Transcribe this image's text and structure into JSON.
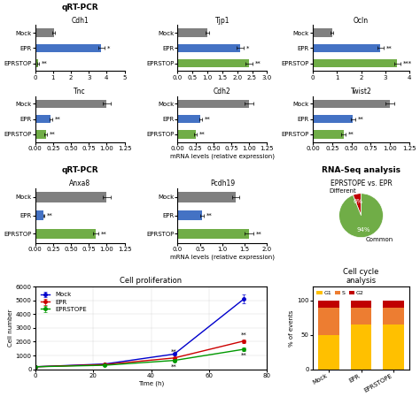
{
  "chart_data": [
    {
      "type": "bar",
      "orientation": "horizontal",
      "title": "qRT-PCR",
      "subtitle": "Cdh1",
      "categories": [
        "Mock",
        "EPR",
        "EPRSTOP"
      ],
      "values": [
        1.05,
        3.7,
        0.15
      ],
      "errors": [
        0.08,
        0.18,
        0.05
      ],
      "colors": [
        "#808080",
        "#4472c4",
        "#70ad47"
      ],
      "xlim": [
        0,
        5
      ],
      "xticks": [
        0,
        1,
        2,
        3,
        4,
        5
      ],
      "annotations": [
        null,
        "*",
        "**"
      ]
    },
    {
      "type": "bar",
      "orientation": "horizontal",
      "subtitle": "Tjp1",
      "categories": [
        "Mock",
        "EPR",
        "EPRSTOP"
      ],
      "values": [
        1.0,
        2.1,
        2.4
      ],
      "errors": [
        0.06,
        0.12,
        0.12
      ],
      "colors": [
        "#808080",
        "#4472c4",
        "#70ad47"
      ],
      "xlim": [
        0,
        3
      ],
      "xticks": [
        {
          "value": 0,
          "label": "0.0"
        },
        0.5,
        {
          "value": 1,
          "label": "1.0"
        },
        1.5,
        {
          "value": 2,
          "label": "2.0"
        },
        2.5,
        {
          "value": 3,
          "label": "3.0"
        }
      ],
      "annotations": [
        null,
        "*",
        "**"
      ]
    },
    {
      "type": "bar",
      "orientation": "horizontal",
      "subtitle": "Ocln",
      "categories": [
        "Mock",
        "EPR",
        "EPRSTOP"
      ],
      "values": [
        0.8,
        2.8,
        3.5
      ],
      "errors": [
        0.06,
        0.12,
        0.14
      ],
      "colors": [
        "#808080",
        "#4472c4",
        "#70ad47"
      ],
      "xlim": [
        0,
        4
      ],
      "xticks": [
        0,
        1,
        2,
        3,
        4
      ],
      "annotations": [
        null,
        "**",
        "***"
      ]
    },
    {
      "type": "bar",
      "orientation": "horizontal",
      "subtitle": "Tnc",
      "categories": [
        "Mock",
        "EPR",
        "EPRSTOP"
      ],
      "values": [
        1.0,
        0.22,
        0.15
      ],
      "errors": [
        0.06,
        0.02,
        0.02
      ],
      "colors": [
        "#808080",
        "#4472c4",
        "#70ad47"
      ],
      "xlim": [
        0,
        1.25
      ],
      "xticks": [
        {
          "value": 0,
          "label": "0.00"
        },
        0.25,
        {
          "value": 0.5,
          "label": "0.50"
        },
        0.75,
        {
          "value": 1,
          "label": "1.00"
        },
        1.25
      ],
      "annotations": [
        null,
        "**",
        "**"
      ]
    },
    {
      "type": "bar",
      "orientation": "horizontal",
      "subtitle": "Cdh2",
      "xlabel": "mRNA levels (relative expression)",
      "categories": [
        "Mock",
        "EPR",
        "EPRSTOP"
      ],
      "values": [
        1.0,
        0.32,
        0.25
      ],
      "errors": [
        0.06,
        0.02,
        0.02
      ],
      "colors": [
        "#808080",
        "#4472c4",
        "#70ad47"
      ],
      "xlim": [
        0,
        1.25
      ],
      "xticks": [
        {
          "value": 0,
          "label": "0.00"
        },
        0.25,
        {
          "value": 0.5,
          "label": "0.50"
        },
        0.75,
        {
          "value": 1,
          "label": "1.00"
        },
        1.25
      ],
      "annotations": [
        null,
        "**",
        "**"
      ]
    },
    {
      "type": "bar",
      "orientation": "horizontal",
      "subtitle": "Twist2",
      "categories": [
        "Mock",
        "EPR",
        "EPRSTOP"
      ],
      "values": [
        1.0,
        0.52,
        0.4
      ],
      "errors": [
        0.06,
        0.03,
        0.03
      ],
      "colors": [
        "#808080",
        "#4472c4",
        "#70ad47"
      ],
      "xlim": [
        0,
        1.25
      ],
      "xticks": [
        {
          "value": 0,
          "label": "0.00"
        },
        0.25,
        {
          "value": 0.5,
          "label": "0.50"
        },
        0.75,
        {
          "value": 1,
          "label": "1.00"
        },
        1.25
      ],
      "annotations": [
        null,
        "**",
        "**"
      ]
    },
    {
      "type": "bar",
      "orientation": "horizontal",
      "title": "qRT-PCR",
      "subtitle": "Anxa8",
      "categories": [
        "Mock",
        "EPR",
        "EPRSTOP"
      ],
      "values": [
        1.0,
        0.12,
        0.85
      ],
      "errors": [
        0.06,
        0.01,
        0.04
      ],
      "colors": [
        "#808080",
        "#4472c4",
        "#70ad47"
      ],
      "xlim": [
        0,
        1.25
      ],
      "xticks": [
        {
          "value": 0,
          "label": "0.00"
        },
        0.25,
        {
          "value": 0.5,
          "label": "0.50"
        },
        0.75,
        {
          "value": 1,
          "label": "1.00"
        },
        1.25
      ],
      "annotations": [
        null,
        "**",
        "**"
      ]
    },
    {
      "type": "bar",
      "orientation": "horizontal",
      "subtitle": "Pcdh19",
      "xlabel": "mRNA levels (relative expression)",
      "categories": [
        "Mock",
        "EPR",
        "EPRSTOP"
      ],
      "values": [
        1.3,
        0.55,
        1.6
      ],
      "errors": [
        0.07,
        0.04,
        0.1
      ],
      "colors": [
        "#808080",
        "#4472c4",
        "#70ad47"
      ],
      "xlim": [
        0,
        2
      ],
      "xticks": [
        {
          "value": 0,
          "label": "0.0"
        },
        0.5,
        {
          "value": 1,
          "label": "1.0"
        },
        1.5,
        {
          "value": 2,
          "label": "2.0"
        }
      ],
      "annotations": [
        null,
        "**",
        "**"
      ]
    },
    {
      "type": "pie",
      "title": "RNA-Seq analysis",
      "subtitle": "EPRSTOPE vs. EPR",
      "categories": [
        "Different",
        "Common"
      ],
      "values": [
        6,
        94
      ],
      "value_labels": [
        "6%",
        "94%"
      ],
      "colors": [
        "#c00000",
        "#70ad47"
      ]
    },
    {
      "type": "line",
      "title": "Cell proliferation",
      "xlabel": "Time (h)",
      "ylabel": "Cell number",
      "x": [
        0,
        24,
        48,
        72
      ],
      "marker": "circle",
      "series": [
        {
          "name": "Mock",
          "color": "#0000cc",
          "values": [
            180,
            380,
            1100,
            5100
          ],
          "errors": [
            15,
            35,
            90,
            320
          ]
        },
        {
          "name": "EPR",
          "color": "#cc0000",
          "values": [
            180,
            340,
            820,
            2050
          ],
          "errors": [
            15,
            28,
            70,
            140
          ],
          "annotations": [
            null,
            null,
            "**",
            "**"
          ]
        },
        {
          "name": "EPRSTOPE",
          "color": "#009900",
          "values": [
            180,
            290,
            640,
            1450
          ],
          "errors": [
            15,
            22,
            60,
            110
          ],
          "annotations": [
            null,
            null,
            "**",
            "**"
          ]
        }
      ],
      "xlim": [
        0,
        80
      ],
      "xticks": [
        0,
        20,
        40,
        60,
        80
      ],
      "ylim": [
        0,
        6000
      ],
      "yticks": [
        0,
        1000,
        2000,
        3000,
        4000,
        5000,
        6000
      ],
      "grid": true,
      "legend": "upper left"
    },
    {
      "type": "bar",
      "stacked": true,
      "title": "Cell cycle\nanalysis",
      "ylabel": "% of events",
      "categories": [
        "Mock",
        "EPR",
        "EPRSTOPE"
      ],
      "series": [
        {
          "name": "G1",
          "color": "#ffc000",
          "values": [
            50,
            65,
            65
          ]
        },
        {
          "name": "S",
          "color": "#ed7d31",
          "values": [
            40,
            25,
            25
          ]
        },
        {
          "name": "G2",
          "color": "#c00000",
          "values": [
            10,
            10,
            10
          ]
        }
      ],
      "ylim": [
        0,
        120
      ],
      "yticks": [
        0,
        50,
        100
      ],
      "legend": "upper left"
    }
  ]
}
